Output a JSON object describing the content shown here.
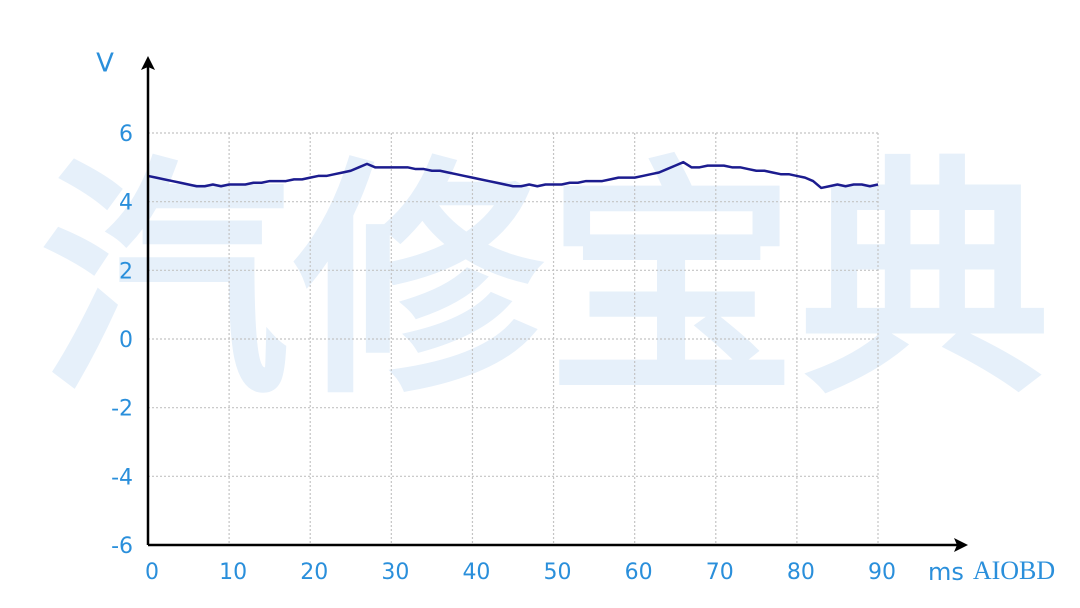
{
  "chart_data": {
    "type": "line",
    "x_label": "ms",
    "y_label": "V",
    "watermark": "汽修宝典",
    "brand": "AIOBD",
    "x": [
      0,
      1,
      2,
      3,
      4,
      5,
      6,
      7,
      8,
      9,
      10,
      11,
      12,
      13,
      14,
      15,
      16,
      17,
      18,
      19,
      20,
      21,
      22,
      23,
      24,
      25,
      26,
      27,
      28,
      29,
      30,
      31,
      32,
      33,
      34,
      35,
      36,
      37,
      38,
      39,
      40,
      41,
      42,
      43,
      44,
      45,
      46,
      47,
      48,
      49,
      50,
      51,
      52,
      53,
      54,
      55,
      56,
      57,
      58,
      59,
      60,
      61,
      62,
      63,
      64,
      65,
      66,
      67,
      68,
      69,
      70,
      71,
      72,
      73,
      74,
      75,
      76,
      77,
      78,
      79,
      80,
      81,
      82,
      83,
      84,
      85,
      86,
      87,
      88,
      89,
      90
    ],
    "series": [
      {
        "color": "#1c1c8f",
        "values": [
          4.75,
          4.7,
          4.65,
          4.6,
          4.55,
          4.5,
          4.45,
          4.45,
          4.5,
          4.45,
          4.5,
          4.5,
          4.5,
          4.55,
          4.55,
          4.6,
          4.6,
          4.6,
          4.65,
          4.65,
          4.7,
          4.75,
          4.75,
          4.8,
          4.85,
          4.9,
          5.0,
          5.1,
          5.0,
          5.0,
          5.0,
          5.0,
          5.0,
          4.95,
          4.95,
          4.9,
          4.9,
          4.85,
          4.8,
          4.75,
          4.7,
          4.65,
          4.6,
          4.55,
          4.5,
          4.45,
          4.45,
          4.5,
          4.45,
          4.5,
          4.5,
          4.5,
          4.55,
          4.55,
          4.6,
          4.6,
          4.6,
          4.65,
          4.7,
          4.7,
          4.7,
          4.75,
          4.8,
          4.85,
          4.95,
          5.05,
          5.15,
          5.0,
          5.0,
          5.05,
          5.05,
          5.05,
          5.0,
          5.0,
          4.95,
          4.9,
          4.9,
          4.85,
          4.8,
          4.8,
          4.75,
          4.7,
          4.6,
          4.4,
          4.45,
          4.5,
          4.45,
          4.5,
          4.5,
          4.45,
          4.5
        ]
      }
    ],
    "xlim": [
      0,
      90
    ],
    "ylim": [
      -6,
      6
    ],
    "xticks": [
      0,
      10,
      20,
      30,
      40,
      50,
      60,
      70,
      80,
      90
    ],
    "yticks": [
      -6,
      -4,
      -2,
      0,
      2,
      4,
      6
    ],
    "grid": true,
    "label_color": "#2a8fdb"
  }
}
